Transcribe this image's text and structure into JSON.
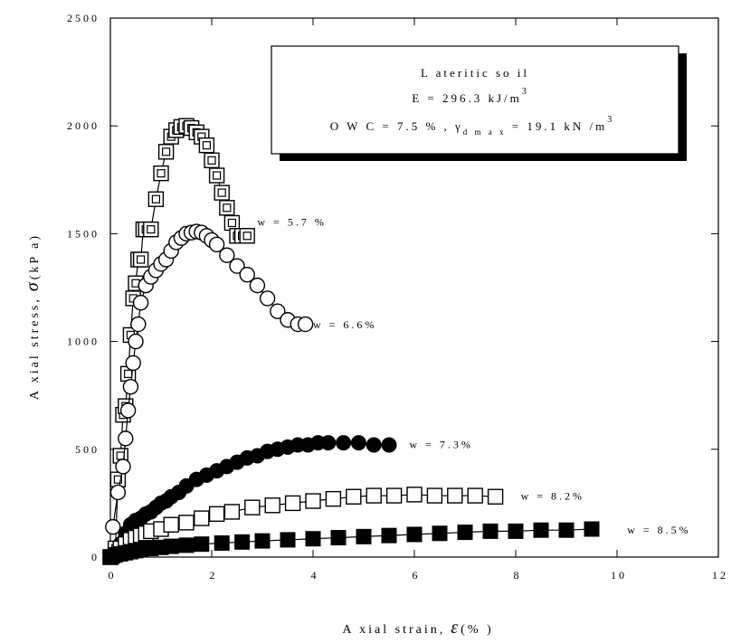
{
  "chart_data": {
    "type": "scatter",
    "xlabel": "A xial strain,",
    "xlabel_symbol": "ε",
    "xlabel_unit": "(% )",
    "ylabel": "A xial stress,",
    "ylabel_symbol": "σ",
    "ylabel_unit": "(kP a)",
    "xlim": [
      0,
      12
    ],
    "ylim": [
      0,
      2500
    ],
    "x_ticks": [
      "0",
      "2",
      "4",
      "6",
      "8",
      "10",
      "12"
    ],
    "y_ticks": [
      "0",
      "500",
      "1000",
      "1500",
      "2000",
      "2500"
    ],
    "grid": false,
    "legend": {
      "position": "top-right",
      "line1": "L ateritic  so il",
      "line2": "E  =  296.3  kJ/m",
      "line2_sup": "3",
      "line3": "O W C  =  7.5 % , γ",
      "line3_sub": "d m a x",
      "line3_rest": "  =  19.1  kN /m",
      "line3_sup": "3"
    },
    "series": [
      {
        "name": "w  =  5.7 %",
        "marker": "double-square",
        "label_at": [
          2.9,
          1555
        ],
        "x": [
          0.0,
          0.1,
          0.15,
          0.2,
          0.25,
          0.3,
          0.35,
          0.4,
          0.45,
          0.5,
          0.55,
          0.6,
          0.65,
          0.7,
          0.8,
          0.9,
          1.0,
          1.1,
          1.2,
          1.3,
          1.4,
          1.5,
          1.6,
          1.7,
          1.8,
          1.9,
          2.0,
          2.1,
          2.2,
          2.3,
          2.4,
          2.5,
          2.6,
          2.7
        ],
        "y": [
          0,
          40,
          360,
          470,
          660,
          700,
          850,
          1030,
          1200,
          1270,
          1380,
          1380,
          1520,
          1520,
          1520,
          1660,
          1780,
          1880,
          1950,
          1980,
          1995,
          2000,
          1990,
          1970,
          1950,
          1910,
          1840,
          1770,
          1690,
          1620,
          1550,
          1490,
          1490,
          1490
        ]
      },
      {
        "name": "w  =  6.6%",
        "marker": "open-circle",
        "label_at": [
          4.0,
          1078
        ],
        "x": [
          0.05,
          0.15,
          0.25,
          0.3,
          0.35,
          0.4,
          0.45,
          0.5,
          0.55,
          0.6,
          0.7,
          0.8,
          0.9,
          1.0,
          1.1,
          1.2,
          1.3,
          1.4,
          1.5,
          1.6,
          1.7,
          1.8,
          1.9,
          2.0,
          2.1,
          2.3,
          2.5,
          2.7,
          2.9,
          3.1,
          3.3,
          3.5,
          3.7,
          3.85
        ],
        "y": [
          140,
          300,
          420,
          550,
          680,
          790,
          900,
          1000,
          1080,
          1180,
          1260,
          1300,
          1330,
          1360,
          1380,
          1420,
          1460,
          1480,
          1500,
          1505,
          1510,
          1505,
          1490,
          1470,
          1450,
          1400,
          1350,
          1310,
          1260,
          1200,
          1140,
          1100,
          1080,
          1080
        ]
      },
      {
        "name": "w  =  7.3%",
        "marker": "filled-circle",
        "label_at": [
          5.9,
          523
        ],
        "x": [
          0.1,
          0.2,
          0.3,
          0.4,
          0.5,
          0.6,
          0.7,
          0.8,
          0.9,
          1.0,
          1.1,
          1.2,
          1.35,
          1.5,
          1.7,
          1.9,
          2.1,
          2.3,
          2.5,
          2.7,
          2.9,
          3.1,
          3.3,
          3.5,
          3.7,
          3.9,
          4.1,
          4.3,
          4.6,
          4.9,
          5.2,
          5.5
        ],
        "y": [
          0,
          60,
          110,
          150,
          170,
          180,
          200,
          210,
          230,
          250,
          260,
          280,
          300,
          330,
          360,
          380,
          400,
          420,
          440,
          460,
          470,
          490,
          500,
          510,
          520,
          520,
          530,
          530,
          530,
          530,
          520,
          520
        ]
      },
      {
        "name": "w  =  8.2%",
        "marker": "open-square",
        "label_at": [
          8.1,
          283
        ],
        "x": [
          0.0,
          0.2,
          0.3,
          0.4,
          0.5,
          0.6,
          0.7,
          0.8,
          1.0,
          1.2,
          1.5,
          1.8,
          2.1,
          2.4,
          2.8,
          3.2,
          3.6,
          4.0,
          4.4,
          4.8,
          5.2,
          5.6,
          6.0,
          6.4,
          6.8,
          7.2,
          7.6
        ],
        "y": [
          0,
          40,
          60,
          80,
          90,
          100,
          110,
          120,
          130,
          150,
          160,
          180,
          200,
          210,
          230,
          240,
          250,
          260,
          270,
          280,
          285,
          285,
          290,
          285,
          285,
          285,
          280
        ]
      },
      {
        "name": "w  =  8.5%",
        "marker": "filled-square",
        "label_at": [
          10.2,
          126
        ],
        "x": [
          0.0,
          0.1,
          0.2,
          0.3,
          0.4,
          0.5,
          0.6,
          0.7,
          0.8,
          1.0,
          1.2,
          1.5,
          1.8,
          2.2,
          2.6,
          3.0,
          3.5,
          4.0,
          4.5,
          5.0,
          5.5,
          6.0,
          6.5,
          7.0,
          7.5,
          8.0,
          8.5,
          9.0,
          9.5
        ],
        "y": [
          0,
          10,
          15,
          20,
          25,
          30,
          35,
          40,
          40,
          45,
          50,
          55,
          60,
          65,
          70,
          75,
          80,
          85,
          90,
          95,
          100,
          105,
          110,
          115,
          120,
          120,
          125,
          125,
          130
        ]
      }
    ]
  }
}
